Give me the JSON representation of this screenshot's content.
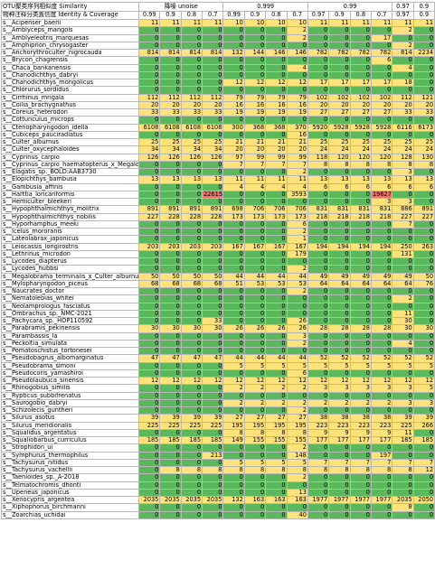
{
  "table": {
    "header_rows": [
      [
        "OTU聚类序列相似度 Similarity",
        "降噪 unoise",
        "0.999",
        "0.99",
        "0.97",
        "0.9"
      ],
      [
        "物种注释分类置信度 Identity & Coverage",
        "0.99",
        "0.9",
        "0.8",
        "0.7",
        "0.99",
        "0.9",
        "0.8",
        "0.7",
        "0.97",
        "0.9",
        "0.8",
        "0.7",
        "0.97",
        "0.9"
      ]
    ],
    "rows": [
      [
        "s__Acipenser_baerii",
        11,
        11,
        11,
        11,
        10,
        10,
        10,
        10,
        11,
        11,
        11,
        11,
        11,
        11
      ],
      [
        "s__Amblyceps_mangois",
        0,
        0,
        0,
        0,
        0,
        0,
        0,
        2,
        0,
        0,
        0,
        0,
        2,
        0
      ],
      [
        "s__Amblyeleotris_marquesas",
        0,
        0,
        0,
        0,
        0,
        0,
        0,
        2,
        0,
        0,
        0,
        17,
        0,
        0
      ],
      [
        "s__Amphiprion_chrysogaster",
        0,
        0,
        0,
        0,
        0,
        0,
        0,
        0,
        0,
        0,
        0,
        0,
        2,
        0
      ],
      [
        "s__Anchorythroculter_nigrocauda",
        814,
        814,
        814,
        814,
        132,
        144,
        146,
        146,
        782,
        782,
        782,
        782,
        814,
        2234
      ],
      [
        "s__Brycon_chagrensis",
        0,
        0,
        0,
        0,
        0,
        0,
        0,
        0,
        0,
        0,
        0,
        6,
        0,
        0
      ],
      [
        "s__Chaca_bankanensis",
        0,
        0,
        0,
        0,
        0,
        0,
        0,
        4,
        0,
        0,
        0,
        0,
        4,
        0
      ],
      [
        "s__Chanodichthys_dabryi",
        0,
        0,
        0,
        0,
        0,
        0,
        0,
        0,
        0,
        0,
        0,
        0,
        0,
        0
      ],
      [
        "s__Chanodichthys_mongolicus",
        0,
        0,
        0,
        0,
        12,
        12,
        12,
        12,
        17,
        17,
        17,
        17,
        18,
        0
      ],
      [
        "s__Chlorurus_sordidus",
        0,
        0,
        0,
        0,
        0,
        0,
        0,
        0,
        0,
        0,
        0,
        0,
        0,
        0
      ],
      [
        "s__Cirrhinus_mrigala",
        112,
        112,
        112,
        112,
        79,
        79,
        79,
        79,
        102,
        102,
        102,
        102,
        112,
        121
      ],
      [
        "s__Coilia_brachygnathus",
        20,
        20,
        20,
        20,
        16,
        16,
        16,
        16,
        20,
        20,
        20,
        20,
        20,
        20
      ],
      [
        "s__Coreius_heterodon",
        33,
        33,
        33,
        33,
        19,
        19,
        19,
        19,
        27,
        27,
        27,
        27,
        33,
        33
      ],
      [
        "s__Cottunculus_microps",
        0,
        0,
        0,
        0,
        0,
        0,
        0,
        0,
        0,
        0,
        0,
        0,
        0,
        0
      ],
      [
        "s__Ctenopharyngodon_idella",
        6108,
        6108,
        6108,
        6108,
        300,
        368,
        368,
        370,
        5920,
        5928,
        5928,
        5928,
        6116,
        6173
      ],
      [
        "s__Cubiceps_pauciradiatus",
        0,
        0,
        0,
        0,
        0,
        0,
        0,
        16,
        0,
        0,
        0,
        0,
        0,
        0
      ],
      [
        "s__Culter_alburnus",
        25,
        25,
        25,
        25,
        21,
        21,
        21,
        21,
        25,
        25,
        25,
        25,
        25,
        25
      ],
      [
        "s__Culter_oxycephaloides",
        34,
        34,
        34,
        34,
        20,
        20,
        20,
        20,
        24,
        24,
        24,
        24,
        24,
        24
      ],
      [
        "s__Cyprinus_carpio",
        126,
        126,
        126,
        126,
        97,
        99,
        99,
        99,
        118,
        120,
        120,
        120,
        128,
        130
      ],
      [
        "s__Cyprinus_carpio_haematopterus_x_Megalobrama",
        0,
        0,
        0,
        0,
        7,
        7,
        7,
        7,
        8,
        8,
        8,
        8,
        8,
        8
      ],
      [
        "s__Elagatis_sp._BOLD:AAB3730",
        0,
        0,
        0,
        0,
        0,
        0,
        0,
        2,
        0,
        0,
        0,
        0,
        3,
        0
      ],
      [
        "s__Elopichthys_bambusa",
        13,
        13,
        13,
        13,
        11,
        11,
        11,
        11,
        13,
        13,
        13,
        13,
        13,
        13
      ],
      [
        "s__Gambusia_affinis",
        0,
        0,
        0,
        0,
        4,
        4,
        4,
        4,
        6,
        6,
        6,
        6,
        6,
        6
      ],
      [
        "s__Harttia_loricariformis",
        0,
        0,
        0,
        22615,
        0,
        0,
        0,
        3593,
        0,
        0,
        0,
        19627,
        0,
        0
      ],
      [
        "s__Hemiculter_bleekeri",
        0,
        0,
        0,
        0,
        0,
        0,
        0,
        0,
        0,
        0,
        0,
        3,
        3,
        0
      ],
      [
        "s__Hypophthalmichthys_molitrix",
        891,
        891,
        891,
        891,
        698,
        706,
        706,
        706,
        831,
        831,
        831,
        831,
        886,
        891
      ],
      [
        "s__Hypophthalmichthys_nobilis",
        227,
        228,
        228,
        228,
        173,
        173,
        173,
        173,
        218,
        218,
        218,
        218,
        227,
        227
      ],
      [
        "s__Hyporhamphus_meeki",
        0,
        0,
        0,
        0,
        0,
        0,
        0,
        6,
        0,
        0,
        0,
        0,
        7,
        0
      ],
      [
        "s__Icelus_mororanis",
        0,
        0,
        0,
        0,
        0,
        0,
        0,
        2,
        0,
        0,
        0,
        0,
        0,
        0
      ],
      [
        "s__Lateolabrax_japonicus",
        0,
        0,
        0,
        0,
        0,
        0,
        0,
        1,
        0,
        0,
        0,
        0,
        0,
        0
      ],
      [
        "s__Leiocassis_longirostris",
        203,
        203,
        203,
        203,
        167,
        167,
        167,
        167,
        194,
        194,
        194,
        194,
        250,
        263
      ],
      [
        "s__Lethrinus_microdon",
        0,
        0,
        0,
        0,
        0,
        0,
        0,
        179,
        0,
        0,
        0,
        0,
        131,
        0
      ],
      [
        "s__Lycodes_diapterus",
        0,
        0,
        0,
        0,
        0,
        0,
        0,
        0,
        0,
        0,
        0,
        0,
        0,
        0
      ],
      [
        "s__Lycodes_hubbsi",
        0,
        0,
        0,
        0,
        0,
        0,
        0,
        2,
        0,
        0,
        0,
        0,
        0,
        0
      ],
      [
        "s__Megalobrama_terminalis_x_Culter_alburnus",
        50,
        50,
        50,
        50,
        44,
        44,
        44,
        44,
        49,
        49,
        49,
        49,
        49,
        50
      ],
      [
        "s__Mylopharyngodon_piceus",
        68,
        68,
        68,
        68,
        51,
        53,
        53,
        53,
        64,
        64,
        64,
        64,
        64,
        76
      ],
      [
        "s__Naucrates_doctor",
        0,
        0,
        0,
        0,
        0,
        0,
        0,
        2,
        0,
        0,
        0,
        0,
        0,
        0
      ],
      [
        "s__Nematolebias_whitei",
        0,
        0,
        0,
        0,
        0,
        0,
        0,
        0,
        0,
        0,
        0,
        0,
        2,
        0
      ],
      [
        "s__Neolamprologus_fasciatus",
        0,
        0,
        0,
        0,
        0,
        0,
        0,
        0,
        0,
        0,
        0,
        0,
        0,
        0
      ],
      [
        "s__Ombrachus_sp._NMC-2021",
        0,
        0,
        0,
        0,
        0,
        0,
        0,
        0,
        0,
        0,
        0,
        0,
        11,
        0
      ],
      [
        "s__Pachycara_sp._HOP110592",
        0,
        0,
        0,
        33,
        0,
        0,
        0,
        26,
        0,
        0,
        0,
        0,
        30,
        0
      ],
      [
        "s__Parabramis_pekinensis",
        30,
        30,
        30,
        30,
        26,
        26,
        26,
        26,
        28,
        28,
        28,
        28,
        30,
        30
      ],
      [
        "s__Parambassis_la",
        0,
        0,
        0,
        0,
        0,
        0,
        0,
        3,
        0,
        0,
        0,
        0,
        0,
        0
      ],
      [
        "s__Peckoltia_simulata",
        0,
        0,
        0,
        0,
        0,
        0,
        0,
        2,
        0,
        0,
        0,
        0,
        4,
        0
      ],
      [
        "s__Pomatoschistus_tortonesei",
        0,
        0,
        0,
        0,
        0,
        0,
        0,
        0,
        0,
        0,
        0,
        0,
        0,
        0
      ],
      [
        "s__Pseudobagrus_albomarginatus",
        47,
        47,
        47,
        47,
        44,
        44,
        44,
        44,
        52,
        52,
        52,
        52,
        52,
        52
      ],
      [
        "s__Pseudobrama_simoni",
        0,
        0,
        0,
        0,
        5,
        5,
        5,
        5,
        5,
        5,
        5,
        5,
        5,
        5
      ],
      [
        "s__Pseudocoris_yamashiroi",
        0,
        0,
        0,
        0,
        0,
        0,
        0,
        6,
        0,
        0,
        0,
        0,
        0,
        0
      ],
      [
        "s__Pseudolaubuca_sinensis",
        12,
        12,
        12,
        12,
        12,
        12,
        12,
        12,
        12,
        12,
        12,
        12,
        12,
        12
      ],
      [
        "s__Rhinogobius_similis",
        0,
        0,
        0,
        0,
        2,
        2,
        2,
        2,
        3,
        3,
        3,
        3,
        3,
        5
      ],
      [
        "s__Rypticus_subbifrenatus",
        0,
        0,
        0,
        0,
        0,
        0,
        0,
        0,
        0,
        0,
        0,
        0,
        0,
        0
      ],
      [
        "s__Saurogobio_dabryi",
        0,
        0,
        0,
        0,
        2,
        2,
        2,
        2,
        2,
        2,
        2,
        2,
        3,
        3
      ],
      [
        "s__Schizolecis_guntheri",
        0,
        0,
        0,
        0,
        0,
        0,
        0,
        2,
        0,
        0,
        0,
        0,
        0,
        0
      ],
      [
        "s__Silurus_asotus",
        39,
        39,
        39,
        39,
        27,
        27,
        27,
        27,
        38,
        38,
        38,
        38,
        39,
        39
      ],
      [
        "s__Silurus_meridionalis",
        225,
        225,
        225,
        225,
        195,
        195,
        195,
        195,
        223,
        223,
        223,
        223,
        225,
        266
      ],
      [
        "s__Squalidus_argentatus",
        0,
        0,
        0,
        0,
        8,
        8,
        8,
        8,
        9,
        9,
        9,
        9,
        11,
        0
      ],
      [
        "s__Squaliobarbus_curriculus",
        185,
        185,
        185,
        185,
        149,
        155,
        155,
        155,
        177,
        177,
        177,
        177,
        185,
        185
      ],
      [
        "s__Strophidon_ui",
        0,
        0,
        0,
        0,
        0,
        0,
        0,
        2,
        0,
        0,
        0,
        0,
        0,
        0
      ],
      [
        "s__Symphurus_thermophilus",
        0,
        0,
        0,
        213,
        0,
        0,
        0,
        148,
        0,
        0,
        0,
        197,
        0,
        0
      ],
      [
        "s__Tachysurus_nitidus",
        0,
        0,
        0,
        0,
        5,
        5,
        5,
        5,
        7,
        7,
        7,
        7,
        7,
        7
      ],
      [
        "s__Tachysurus_vachellii",
        0,
        8,
        8,
        8,
        8,
        8,
        8,
        8,
        8,
        8,
        8,
        8,
        8,
        12
      ],
      [
        "s__Taenioides_sp._A-2018",
        0,
        0,
        0,
        0,
        0,
        0,
        0,
        2,
        0,
        0,
        0,
        0,
        0,
        0
      ],
      [
        "s__Telmatochromis_dhonti",
        0,
        0,
        0,
        0,
        0,
        0,
        0,
        0,
        0,
        0,
        0,
        0,
        0,
        0
      ],
      [
        "s__Upeneus_japonicus",
        0,
        0,
        0,
        0,
        0,
        0,
        0,
        13,
        0,
        0,
        0,
        0,
        0,
        0
      ],
      [
        "s__Xenocypris_argentea",
        2035,
        2035,
        2035,
        2035,
        132,
        163,
        163,
        163,
        1977,
        1977,
        1977,
        1977,
        2035,
        2050
      ],
      [
        "s__Xiphophorus_birchmanni",
        0,
        0,
        0,
        0,
        0,
        0,
        0,
        0,
        0,
        0,
        0,
        0,
        8,
        0
      ],
      [
        "s__Zoarchias_uchidai",
        0,
        0,
        0,
        0,
        0,
        0,
        0,
        40,
        0,
        0,
        0,
        0,
        0,
        0
      ]
    ],
    "cell_colors": {
      "zero": "#5cb85c",
      "nonzero": "#ffe27a",
      "flagged": "#f0706a"
    },
    "flagged_cells": [
      [
        23,
        4
      ],
      [
        23,
        12
      ]
    ]
  }
}
